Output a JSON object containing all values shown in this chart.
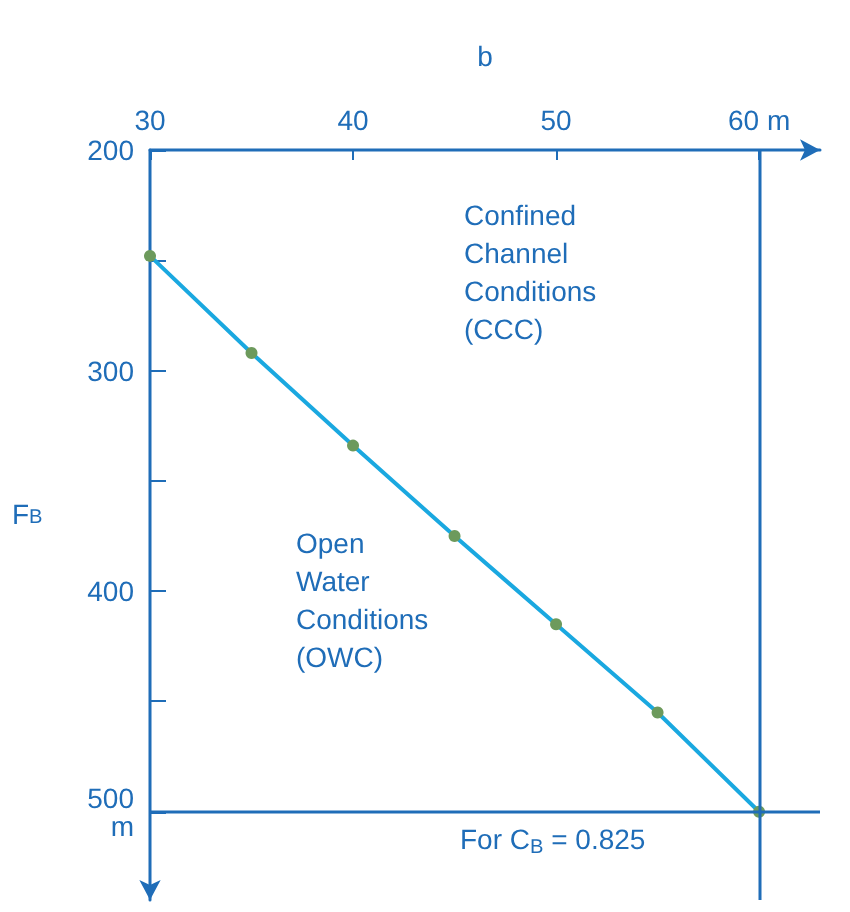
{
  "chart_data": {
    "type": "line",
    "xlabel": "b",
    "ylabel": "F$_{B}$",
    "x": [
      30,
      35,
      40,
      45,
      50,
      55,
      60
    ],
    "series": [
      {
        "color": "#1aa8e0",
        "values": [
          248,
          292,
          334,
          375,
          415,
          455,
          500
        ]
      }
    ],
    "marker": "circle",
    "line_style": "solid",
    "xlim": [
      30,
      63
    ],
    "xticks": [
      30,
      40,
      50,
      {
        "value": 60,
        "label": "60 m"
      }
    ],
    "ylim": [
      540,
      200
    ],
    "yticks": [
      200,
      {
        "value": 250,
        "label": null
      },
      300,
      {
        "value": 350,
        "label": null
      },
      400,
      {
        "value": 450,
        "label": null
      },
      {
        "value": 500,
        "label": "500\nm"
      }
    ],
    "ref_lines": [
      {
        "axis": "x",
        "value": 60,
        "label": null,
        "color": "#1f6db8"
      },
      {
        "axis": "y",
        "value": 500,
        "label": null,
        "color": "#1f6db8"
      }
    ],
    "annotations": [
      "Confined\nChannel\nConditions\n(CCC)",
      "Open\nWater\nConditions\n(OWC)",
      "For C$_{B}$ = 0.825"
    ]
  }
}
